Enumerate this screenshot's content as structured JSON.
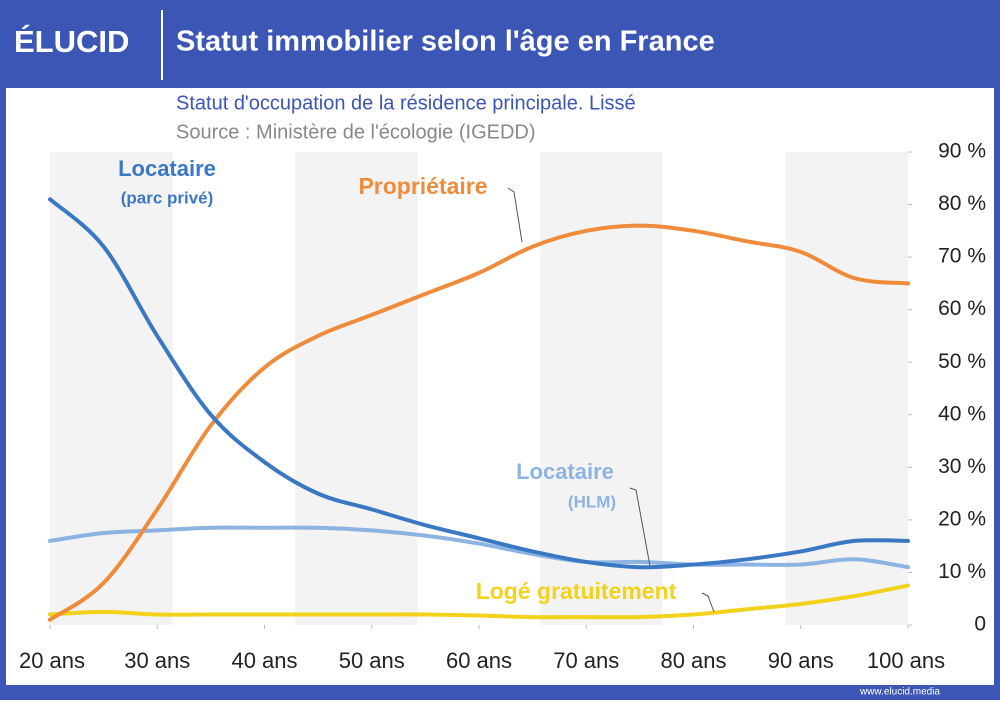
{
  "header": {
    "logo": "ÉLUCID",
    "title": "Statut immobilier selon l'âge en France"
  },
  "footer": {
    "url": "www.elucid.media"
  },
  "chart_data": {
    "type": "line",
    "subtitle": "Statut d'occupation de la résidence principale. Lissé",
    "source": "Source : Ministère de l'écologie (IGEDD)",
    "x": [
      20,
      25,
      30,
      35,
      40,
      45,
      50,
      55,
      60,
      65,
      70,
      75,
      80,
      85,
      90,
      95,
      100
    ],
    "xlim": [
      20,
      100
    ],
    "xticks": [
      {
        "value": 20,
        "label": "20 ans"
      },
      {
        "value": 30,
        "label": "30 ans"
      },
      {
        "value": 40,
        "label": "40 ans"
      },
      {
        "value": 50,
        "label": "50 ans"
      },
      {
        "value": 60,
        "label": "60 ans"
      },
      {
        "value": 70,
        "label": "70 ans"
      },
      {
        "value": 80,
        "label": "80 ans"
      },
      {
        "value": 90,
        "label": "90 ans"
      },
      {
        "value": 100,
        "label": "100 ans"
      }
    ],
    "ylim": [
      0,
      90
    ],
    "yticks": [
      0,
      {
        "value": 10,
        "label": "10 %"
      },
      {
        "value": 20,
        "label": "20 %"
      },
      {
        "value": 30,
        "label": "30 %"
      },
      {
        "value": 40,
        "label": "40 %"
      },
      {
        "value": 50,
        "label": "50 %"
      },
      {
        "value": 60,
        "label": "60 %"
      },
      {
        "value": 70,
        "label": "70 %"
      },
      {
        "value": 80,
        "label": "80 %"
      },
      {
        "value": 90,
        "label": "90 %"
      }
    ],
    "series": [
      {
        "label": [
          "Locataire",
          "(parc privé)"
        ],
        "color": "#3a78c4",
        "values": [
          81,
          72,
          55,
          40,
          31,
          25,
          22,
          19,
          16.5,
          14,
          12,
          11,
          11.5,
          12.5,
          14,
          16,
          16
        ]
      },
      {
        "label": [
          "Propriétaire"
        ],
        "color": "#ef8c3b",
        "values": [
          1,
          8,
          22,
          38,
          49,
          55,
          59,
          63,
          67,
          72,
          75,
          76,
          75,
          73,
          71,
          66,
          65
        ]
      },
      {
        "label": [
          "Locataire",
          "(HLM)"
        ],
        "color": "#8db3e2",
        "values": [
          16,
          17.5,
          18,
          18.5,
          18.5,
          18.5,
          18,
          17,
          15.5,
          13.5,
          12,
          12,
          11.5,
          11.5,
          11.5,
          12.5,
          11
        ]
      },
      {
        "label": [
          "Logé gratuitement"
        ],
        "color": "#f2d21b",
        "values": [
          2,
          2.5,
          2,
          2,
          2,
          2,
          2,
          2,
          1.8,
          1.5,
          1.5,
          1.5,
          2,
          3,
          4,
          5.5,
          7.5
        ]
      }
    ]
  }
}
